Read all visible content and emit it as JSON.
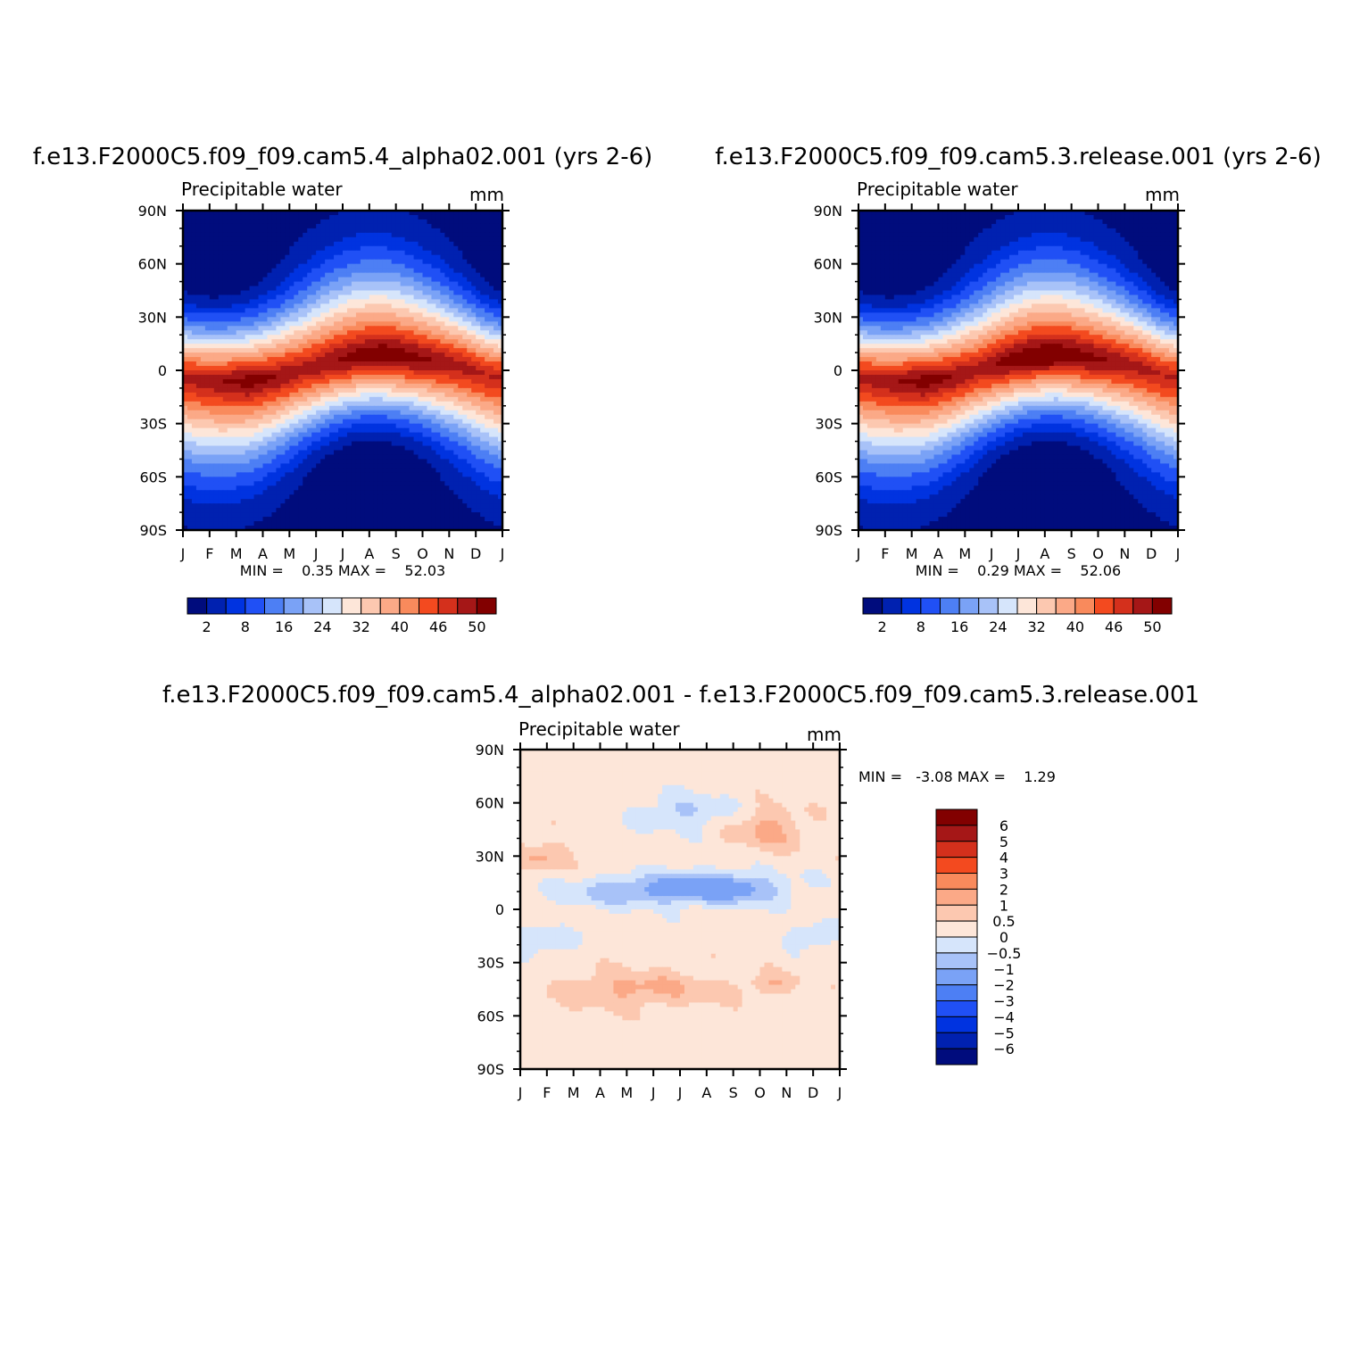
{
  "figure": {
    "colors": {
      "seq": [
        "#000c7d",
        "#0021b0",
        "#0033e0",
        "#2050f5",
        "#4d7ff4",
        "#7aa2f6",
        "#a8c2f8",
        "#d6e5fb",
        "#fde6d9",
        "#fcc8b0",
        "#fba987",
        "#f98a5c",
        "#f34a1f",
        "#d4301c",
        "#a51717",
        "#820000"
      ],
      "diff": [
        "#000c7d",
        "#0021b0",
        "#0033e0",
        "#2050f5",
        "#4d7ff4",
        "#7aa2f6",
        "#a8c2f8",
        "#d6e5fb",
        "#fde6d9",
        "#fcc8b0",
        "#fba987",
        "#f98a5c",
        "#f34a1f",
        "#d4301c",
        "#a51717",
        "#820000"
      ]
    }
  },
  "panels": [
    {
      "title": "f.e13.F2000C5.f09_f09.cam5.4_alpha02.001 (yrs 2-6)",
      "left_label": "Precipitable water",
      "right_label": "mm",
      "minmax": "MIN =    0.35 MAX =    52.03"
    },
    {
      "title": "f.e13.F2000C5.f09_f09.cam5.3.release.001 (yrs 2-6)",
      "left_label": "Precipitable water",
      "right_label": "mm",
      "minmax": "MIN =    0.29 MAX =    52.06"
    },
    {
      "title": "f.e13.F2000C5.f09_f09.cam5.4_alpha02.001 - f.e13.F2000C5.f09_f09.cam5.3.release.001",
      "left_label": "Precipitable water",
      "right_label": "mm",
      "minmax": "MIN =   -3.08 MAX =    1.29"
    }
  ],
  "chart_data": [
    {
      "type": "heatmap",
      "title": "f.e13.F2000C5.f09_f09.cam5.4_alpha02.001 (yrs 2-6)",
      "subtitle_left": "Precipitable water",
      "subtitle_right": "mm",
      "x_tick_labels": [
        "J",
        "F",
        "M",
        "A",
        "M",
        "J",
        "J",
        "A",
        "S",
        "O",
        "N",
        "D",
        "J"
      ],
      "y_tick_labels": [
        "90N",
        "60N",
        "30N",
        "0",
        "30S",
        "60S",
        "90S"
      ],
      "ylim": [
        -90,
        90
      ],
      "min": 0.35,
      "max": 52.03,
      "colorbar_labels": [
        "2",
        "8",
        "16",
        "24",
        "32",
        "40",
        "46",
        "50"
      ],
      "colorbar_position": "bottom",
      "months": [
        "Jan",
        "Feb",
        "Mar",
        "Apr",
        "May",
        "Jun",
        "Jul",
        "Aug",
        "Sep",
        "Oct",
        "Nov",
        "Dec"
      ],
      "itcz_lat_by_month": [
        -5,
        -6,
        -6,
        -4,
        0,
        4,
        7,
        8,
        7,
        5,
        2,
        -3
      ],
      "peak_value_by_month": [
        49,
        50,
        51,
        50,
        49,
        50,
        51,
        52,
        51,
        50,
        49,
        48
      ]
    },
    {
      "type": "heatmap",
      "title": "f.e13.F2000C5.f09_f09.cam5.3.release.001 (yrs 2-6)",
      "subtitle_left": "Precipitable water",
      "subtitle_right": "mm",
      "x_tick_labels": [
        "J",
        "F",
        "M",
        "A",
        "M",
        "J",
        "J",
        "A",
        "S",
        "O",
        "N",
        "D",
        "J"
      ],
      "y_tick_labels": [
        "90N",
        "60N",
        "30N",
        "0",
        "30S",
        "60S",
        "90S"
      ],
      "ylim": [
        -90,
        90
      ],
      "min": 0.29,
      "max": 52.06,
      "colorbar_labels": [
        "2",
        "8",
        "16",
        "24",
        "32",
        "40",
        "46",
        "50"
      ],
      "colorbar_position": "bottom",
      "months": [
        "Jan",
        "Feb",
        "Mar",
        "Apr",
        "May",
        "Jun",
        "Jul",
        "Aug",
        "Sep",
        "Oct",
        "Nov",
        "Dec"
      ],
      "itcz_lat_by_month": [
        -5,
        -6,
        -6,
        -4,
        0,
        4,
        7,
        8,
        7,
        5,
        2,
        -3
      ],
      "peak_value_by_month": [
        49,
        50,
        51,
        50,
        49,
        51,
        52,
        52,
        51,
        50,
        49,
        48
      ]
    },
    {
      "type": "heatmap",
      "title": "f.e13.F2000C5.f09_f09.cam5.4_alpha02.001 - f.e13.F2000C5.f09_f09.cam5.3.release.001",
      "subtitle_left": "Precipitable water",
      "subtitle_right": "mm",
      "x_tick_labels": [
        "J",
        "F",
        "M",
        "A",
        "M",
        "J",
        "J",
        "A",
        "S",
        "O",
        "N",
        "D",
        "J"
      ],
      "y_tick_labels": [
        "90N",
        "60N",
        "30N",
        "0",
        "30S",
        "60S",
        "90S"
      ],
      "ylim": [
        -90,
        90
      ],
      "min": -3.08,
      "max": 1.29,
      "colorbar_labels": [
        "6",
        "5",
        "4",
        "3",
        "2",
        "1",
        "0.5",
        "0",
        "-0.5",
        "-1",
        "-2",
        "-3",
        "-4",
        "-5",
        "-6"
      ],
      "colorbar_position": "right"
    }
  ]
}
